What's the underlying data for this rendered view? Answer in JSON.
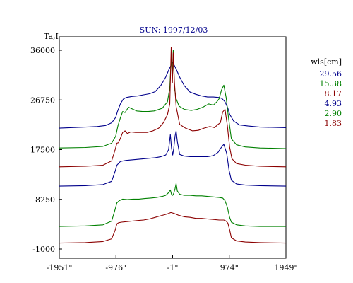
{
  "chart_data": {
    "type": "line",
    "title": "SUN: 1997/12/03",
    "ylabel": "Ta,I",
    "xlabel": "",
    "xlim": [
      -1951,
      1949
    ],
    "ylim": [
      -1000,
      36000
    ],
    "x_ticks": [
      -1951,
      -976,
      -1,
      974,
      1949
    ],
    "x_tick_labels": [
      "-1951\"",
      "-976\"",
      "-1\"",
      "974\"",
      "1949\""
    ],
    "y_ticks": [
      -1000,
      8250,
      17500,
      26750,
      36000
    ],
    "y_tick_labels": [
      "-1000",
      "8250",
      "17500",
      "26750",
      "36000"
    ],
    "grid": false,
    "legend_position": "right",
    "legend_title": "wls[cm]",
    "series": [
      {
        "name": "29.56",
        "color": "#00008b",
        "x": [
          -1951,
          -1500,
          -1300,
          -1150,
          -1050,
          -980,
          -950,
          -900,
          -850,
          -800,
          -700,
          -600,
          -500,
          -400,
          -300,
          -200,
          -120,
          -60,
          0,
          60,
          120,
          200,
          300,
          400,
          500,
          600,
          700,
          800,
          850,
          900,
          950,
          980,
          1050,
          1150,
          1300,
          1500,
          1949
        ],
        "y": [
          21500,
          21700,
          21800,
          22000,
          22500,
          23500,
          24600,
          26000,
          26900,
          27200,
          27400,
          27500,
          27700,
          27900,
          28300,
          29500,
          31000,
          32500,
          33800,
          32500,
          31000,
          29400,
          28200,
          27800,
          27500,
          27300,
          27300,
          27200,
          27000,
          26400,
          25200,
          24100,
          22800,
          22100,
          21900,
          21700,
          21600
        ]
      },
      {
        "name": "15.38",
        "color": "#008000",
        "x": [
          -1951,
          -1500,
          -1200,
          -1050,
          -980,
          -940,
          -900,
          -860,
          -820,
          -760,
          -700,
          -620,
          -520,
          -420,
          -320,
          -180,
          -90,
          -50,
          -25,
          -5,
          10,
          30,
          60,
          110,
          200,
          320,
          420,
          520,
          620,
          700,
          760,
          800,
          840,
          880,
          920,
          960,
          1010,
          1100,
          1250,
          1500,
          1949
        ],
        "y": [
          17800,
          17900,
          18100,
          18700,
          20000,
          22000,
          23400,
          24600,
          24400,
          25400,
          25100,
          24700,
          24600,
          24600,
          24700,
          25200,
          26400,
          29000,
          34500,
          31500,
          36000,
          29000,
          27000,
          25600,
          25000,
          24800,
          25000,
          25400,
          26000,
          25800,
          26400,
          27000,
          28600,
          29500,
          27200,
          23500,
          19500,
          18400,
          18000,
          17800,
          17700
        ]
      },
      {
        "name": "8.17",
        "color": "#8b0000",
        "x": [
          -1951,
          -1500,
          -1200,
          -1050,
          -990,
          -960,
          -930,
          -900,
          -860,
          -820,
          -780,
          -720,
          -640,
          -540,
          -440,
          -340,
          -240,
          -160,
          -90,
          -50,
          -25,
          -5,
          10,
          30,
          60,
          120,
          220,
          340,
          440,
          540,
          640,
          720,
          780,
          820,
          860,
          900,
          940,
          980,
          1020,
          1100,
          1250,
          1500,
          1949
        ],
        "y": [
          14300,
          14400,
          14600,
          15400,
          17500,
          18700,
          18800,
          19600,
          20700,
          21000,
          20500,
          20800,
          20700,
          20700,
          20700,
          21000,
          21500,
          22500,
          24000,
          26000,
          36500,
          30000,
          35500,
          30000,
          25500,
          22200,
          21500,
          21000,
          21100,
          21500,
          21800,
          21600,
          22200,
          22500,
          24500,
          25000,
          22000,
          18000,
          15800,
          14900,
          14600,
          14400,
          14300
        ]
      },
      {
        "name": "4.93",
        "color": "#00008b",
        "x": [
          -1951,
          -1500,
          -1200,
          -1050,
          -990,
          -960,
          -900,
          -800,
          -700,
          -600,
          -500,
          -400,
          -300,
          -200,
          -120,
          -70,
          -40,
          -20,
          0,
          20,
          40,
          60,
          80,
          120,
          200,
          300,
          400,
          500,
          600,
          700,
          780,
          830,
          880,
          930,
          970,
          1010,
          1100,
          1250,
          1500,
          1949
        ],
        "y": [
          10700,
          10800,
          11000,
          11600,
          13500,
          14600,
          15300,
          15500,
          15600,
          15700,
          15800,
          15900,
          16000,
          16200,
          16500,
          17500,
          20300,
          17800,
          16500,
          17800,
          20000,
          21000,
          19000,
          16600,
          16300,
          16200,
          16200,
          16200,
          16200,
          16400,
          17000,
          17800,
          18500,
          16800,
          13700,
          11800,
          11100,
          10900,
          10800,
          10700
        ]
      },
      {
        "name": "2.90",
        "color": "#008000",
        "x": [
          -1951,
          -1500,
          -1200,
          -1050,
          -990,
          -960,
          -920,
          -860,
          -780,
          -680,
          -580,
          -480,
          -380,
          -280,
          -180,
          -120,
          -70,
          -40,
          -20,
          0,
          20,
          40,
          60,
          80,
          120,
          200,
          300,
          400,
          500,
          600,
          700,
          800,
          860,
          900,
          940,
          980,
          1010,
          1100,
          1250,
          1500,
          1949
        ],
        "y": [
          3200,
          3300,
          3500,
          4200,
          6400,
          7600,
          8000,
          8300,
          8200,
          8300,
          8300,
          8400,
          8500,
          8600,
          8800,
          9000,
          9500,
          10000,
          9200,
          9000,
          9400,
          10200,
          11200,
          9800,
          9200,
          9000,
          9000,
          8900,
          8900,
          8800,
          8700,
          8600,
          8500,
          8000,
          6800,
          4900,
          4000,
          3500,
          3300,
          3200,
          3200
        ]
      },
      {
        "name": "1.83",
        "color": "#8b0000",
        "x": [
          -1951,
          -1500,
          -1200,
          -1050,
          -990,
          -960,
          -930,
          -880,
          -800,
          -700,
          -600,
          -500,
          -400,
          -300,
          -200,
          -100,
          -30,
          0,
          30,
          100,
          200,
          300,
          400,
          500,
          600,
          700,
          800,
          880,
          920,
          950,
          980,
          1010,
          1100,
          1250,
          1500,
          1949
        ],
        "y": [
          100,
          200,
          400,
          900,
          2500,
          3700,
          3900,
          4000,
          4100,
          4200,
          4300,
          4400,
          4600,
          4900,
          5200,
          5500,
          5800,
          5700,
          5600,
          5300,
          5000,
          4900,
          4700,
          4700,
          4600,
          4500,
          4400,
          4400,
          4200,
          3800,
          2600,
          1100,
          500,
          300,
          200,
          100
        ]
      }
    ]
  }
}
